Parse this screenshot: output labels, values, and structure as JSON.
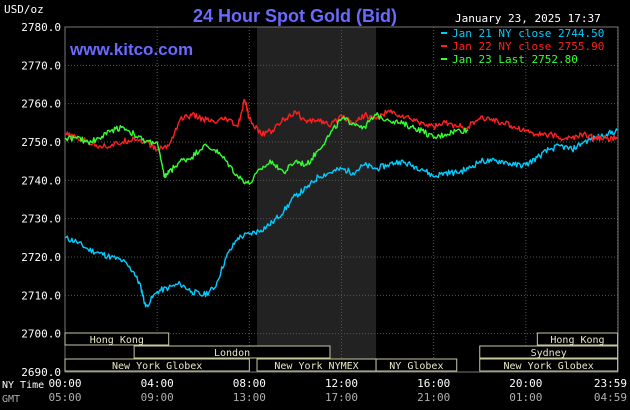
{
  "chart_data": {
    "type": "line",
    "title": "24 Hour Spot Gold (Bid)",
    "website": "www.kitco.com",
    "timestamp": "January 23, 2025 17:37",
    "unit_label": "USD/oz",
    "ylim": [
      2690,
      2780
    ],
    "y_ticks": [
      "2780.0",
      "2770.0",
      "2760.0",
      "2750.0",
      "2740.0",
      "2730.0",
      "2720.0",
      "2710.0",
      "2700.0",
      "2690.0"
    ],
    "x_ticks_ny": [
      "00:00",
      "04:00",
      "08:00",
      "12:00",
      "16:00",
      "20:00",
      "23:59"
    ],
    "x_ticks_gmt": [
      "05:00",
      "09:00",
      "13:00",
      "17:00",
      "21:00",
      "01:00",
      "04:59"
    ],
    "x_label_ny": "NY Time",
    "x_label_gmt": "GMT",
    "grid": true,
    "legend_position": "top-right",
    "legend": [
      {
        "text": "Jan 21 NY close 2744.50",
        "color": "#00ccff"
      },
      {
        "text": "Jan 22 NY close 2755.90",
        "color": "#ff2020"
      },
      {
        "text": "Jan 23 Last 2752.80",
        "color": "#33ff33"
      }
    ],
    "sessions": [
      {
        "label": "Hong Kong",
        "row": 0,
        "start": "00:00",
        "end": "04:30"
      },
      {
        "label": "London",
        "row": 1,
        "start": "03:00",
        "end": "11:30"
      },
      {
        "label": "New York Globex",
        "row": 2,
        "start": "00:00",
        "end": "08:00"
      },
      {
        "label": "New York NYMEX",
        "row": 2,
        "start": "08:20",
        "end": "13:30"
      },
      {
        "label": "NY Globex",
        "row": 2,
        "start": "13:30",
        "end": "17:00"
      },
      {
        "label": "Hong Kong",
        "row": 0,
        "start": "20:30",
        "end": "23:59"
      },
      {
        "label": "Sydney",
        "row": 1,
        "start": "18:00",
        "end": "23:59"
      },
      {
        "label": "New York Globex",
        "row": 2,
        "start": "18:00",
        "end": "23:59"
      }
    ],
    "highlight_band": {
      "start": "08:20",
      "end": "13:30"
    },
    "series": [
      {
        "color": "#00ccff",
        "x": [
          0,
          0.5,
          1,
          1.5,
          2,
          2.5,
          3,
          3.3,
          3.5,
          4,
          4.5,
          5,
          5.5,
          6,
          6.5,
          7,
          7.5,
          8,
          8.5,
          9,
          9.5,
          10,
          10.5,
          11,
          11.5,
          12,
          12.5,
          13,
          13.5,
          14,
          14.5,
          15,
          15.5,
          16,
          16.5,
          17,
          17.5,
          18,
          18.5,
          19,
          19.5,
          20,
          20.5,
          21,
          21.5,
          22,
          22.5,
          23,
          23.5,
          23.98
        ],
        "y": [
          2725,
          2724,
          2722,
          2721,
          2720,
          2719,
          2716,
          2712,
          2707,
          2711,
          2712,
          2713,
          2711,
          2710,
          2712,
          2720,
          2725,
          2726,
          2727,
          2729,
          2732,
          2736,
          2738,
          2741,
          2742,
          2743,
          2742,
          2744,
          2743,
          2744,
          2745,
          2744,
          2743,
          2741,
          2742,
          2742,
          2743,
          2745,
          2745,
          2745,
          2744,
          2744,
          2746,
          2748,
          2749,
          2748,
          2750,
          2751,
          2752,
          2753
        ]
      },
      {
        "color": "#ff2020",
        "x": [
          0,
          0.5,
          1,
          1.5,
          2,
          2.5,
          3,
          3.5,
          4,
          4.5,
          5,
          5.5,
          6,
          6.5,
          7,
          7.5,
          7.8,
          8,
          8.5,
          9,
          9.5,
          10,
          10.5,
          11,
          11.5,
          12,
          12.5,
          13,
          13.5,
          14,
          14.5,
          15,
          15.5,
          16,
          16.5,
          17,
          17.5,
          18,
          18.5,
          19,
          19.5,
          20,
          20.5,
          21,
          21.5,
          22,
          22.5,
          23,
          23.5,
          23.98
        ],
        "y": [
          2752,
          2751,
          2750,
          2749,
          2749,
          2750,
          2751,
          2750,
          2748,
          2749,
          2756,
          2757,
          2756,
          2755,
          2756,
          2754,
          2761,
          2756,
          2752,
          2753,
          2756,
          2758,
          2755,
          2756,
          2754,
          2757,
          2755,
          2757,
          2756,
          2758,
          2757,
          2756,
          2755,
          2754,
          2755,
          2754,
          2754,
          2756,
          2756,
          2755,
          2754,
          2753,
          2752,
          2752,
          2751,
          2751,
          2752,
          2751,
          2751,
          2751
        ]
      },
      {
        "color": "#33ff33",
        "x": [
          0,
          0.5,
          1,
          1.5,
          2,
          2.5,
          3,
          3.5,
          4,
          4.3,
          4.5,
          5,
          5.5,
          6,
          6.5,
          7,
          7.5,
          8,
          8.5,
          9,
          9.5,
          10,
          10.5,
          11,
          11.5,
          12,
          12.5,
          13,
          13.5,
          14,
          14.5,
          15,
          15.5,
          16,
          16.5,
          17,
          17.5
        ],
        "y": [
          2751,
          2751,
          2750,
          2751,
          2753,
          2754,
          2752,
          2750,
          2750,
          2741,
          2742,
          2745,
          2746,
          2749,
          2748,
          2745,
          2741,
          2739,
          2743,
          2745,
          2742,
          2745,
          2744,
          2748,
          2752,
          2756,
          2755,
          2754,
          2757,
          2756,
          2755,
          2754,
          2753,
          2751,
          2752,
          2753,
          2753
        ]
      }
    ]
  }
}
